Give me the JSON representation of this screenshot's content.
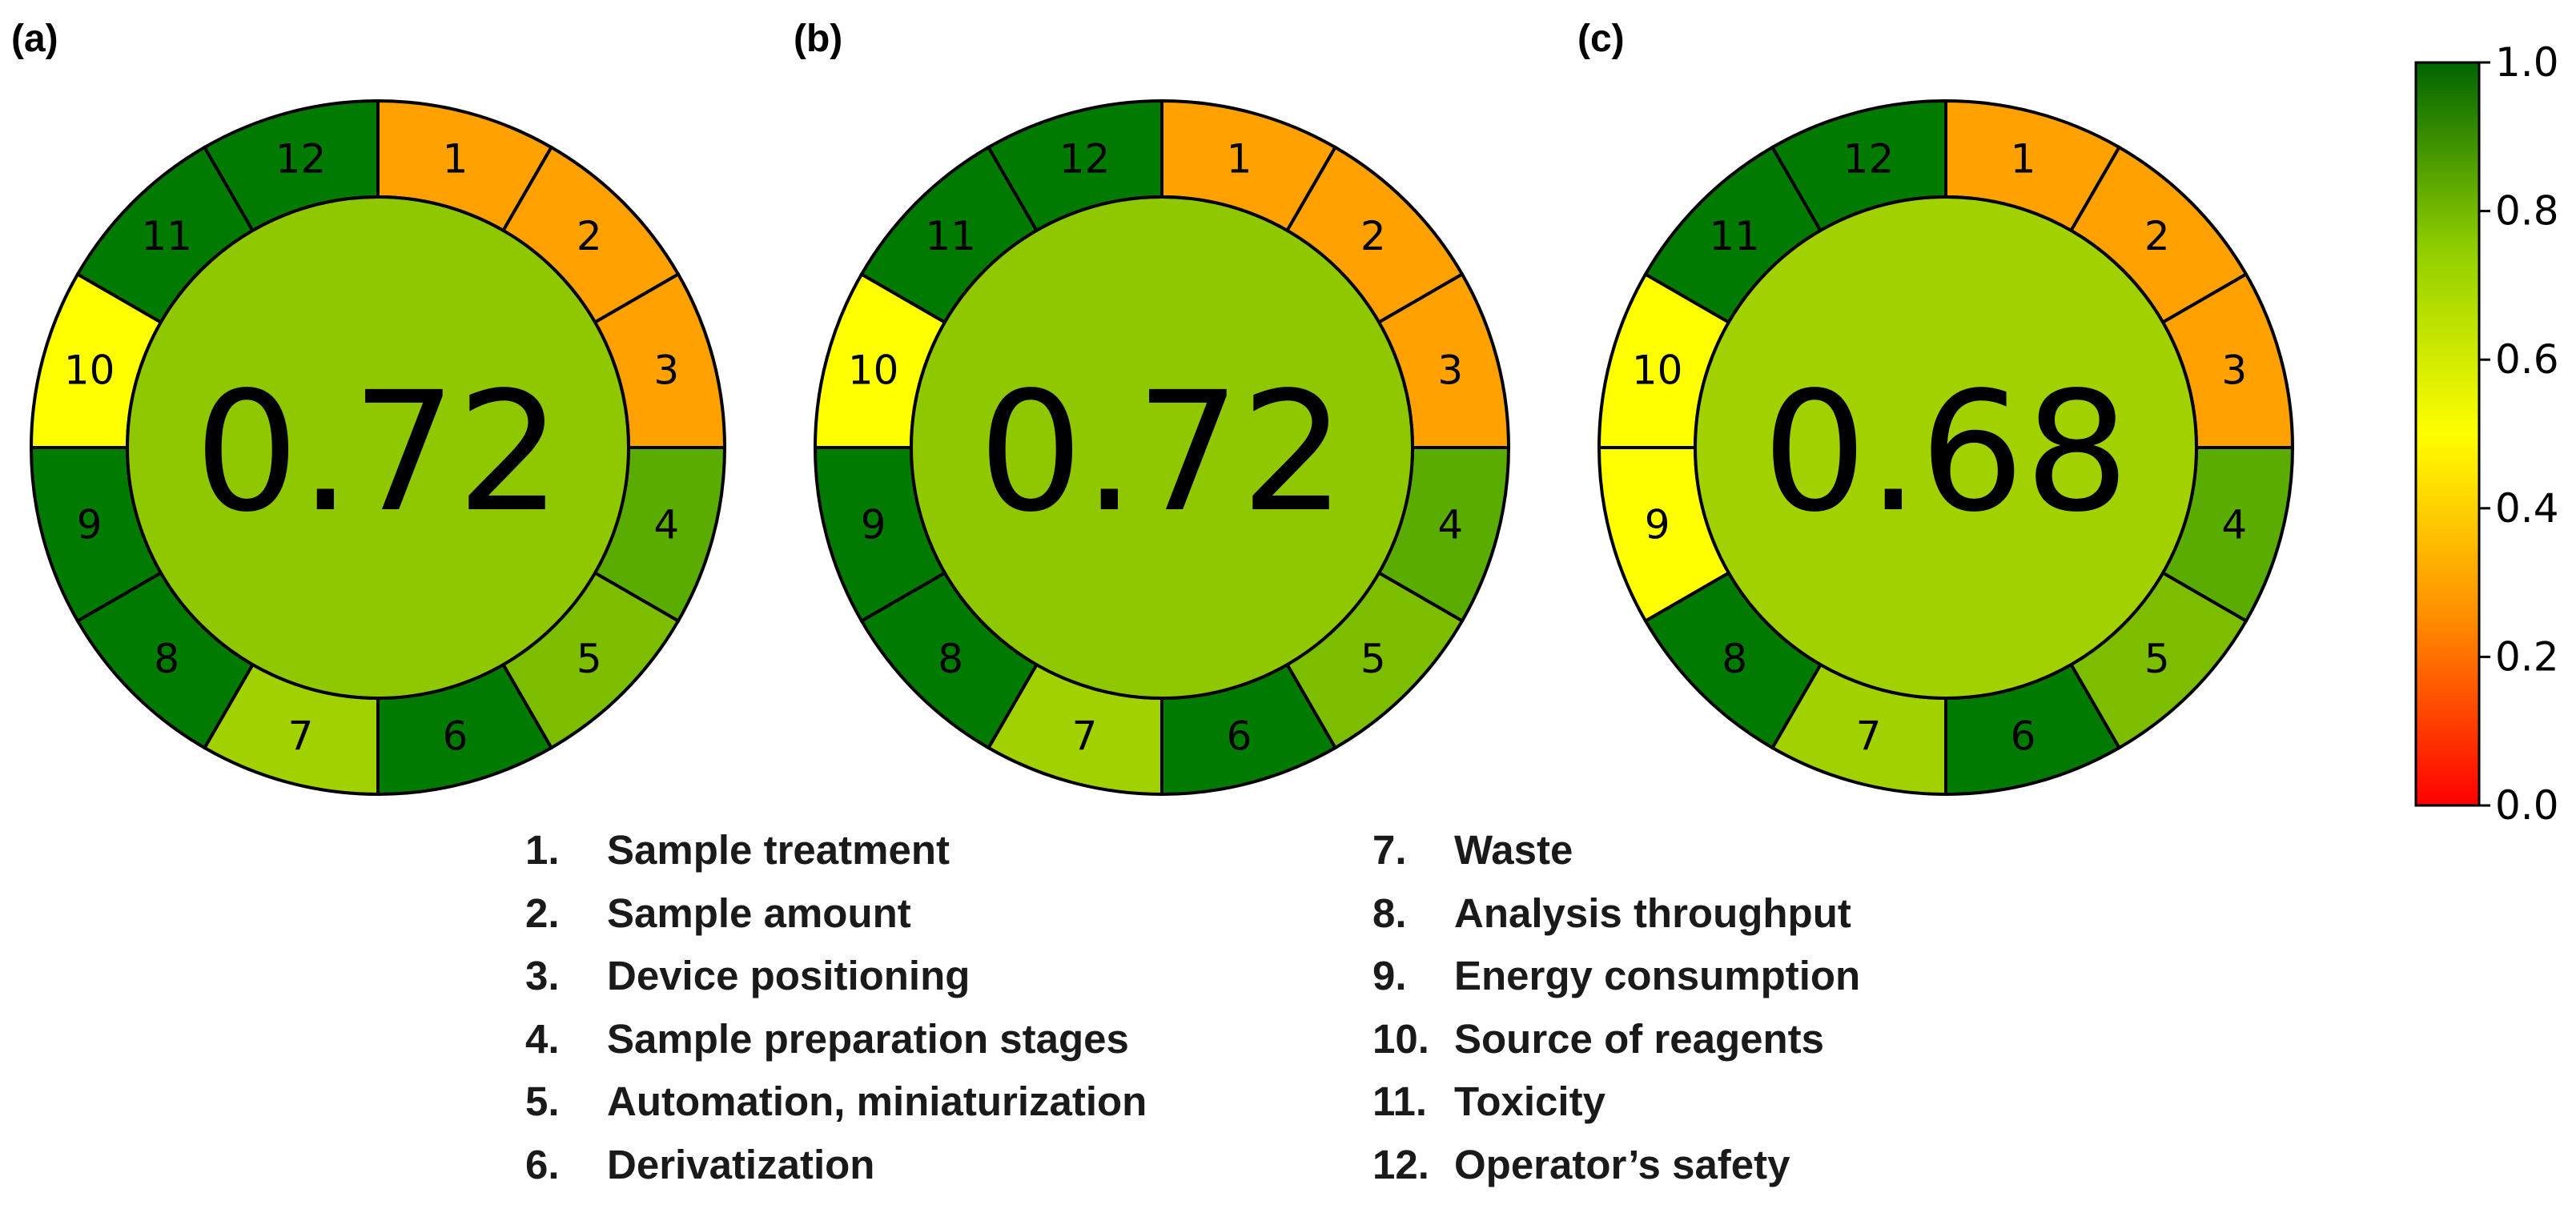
{
  "colorbar": {
    "ticks": [
      "1.0",
      "0.8",
      "0.6",
      "0.4",
      "0.2",
      "0.0"
    ],
    "stops": [
      "#ff0000",
      "#ff8c00",
      "#ffff00",
      "#8fce00",
      "#006400"
    ]
  },
  "legend": {
    "column_a": [
      {
        "num": "1.",
        "label": "Sample treatment"
      },
      {
        "num": "2.",
        "label": "Sample amount"
      },
      {
        "num": "3.",
        "label": "Device positioning"
      },
      {
        "num": "4.",
        "label": "Sample preparation stages"
      },
      {
        "num": "5.",
        "label": "Automation, miniaturization"
      },
      {
        "num": "6.",
        "label": "Derivatization"
      }
    ],
    "column_b": [
      {
        "num": "7.",
        "label": "Waste"
      },
      {
        "num": "8.",
        "label": "Analysis throughput"
      },
      {
        "num": "9.",
        "label": "Energy consumption"
      },
      {
        "num": "10.",
        "label": "Source of reagents"
      },
      {
        "num": "11.",
        "label": "Toxicity"
      },
      {
        "num": "12.",
        "label": "Operator’s safety"
      }
    ]
  },
  "chart_data": [
    {
      "type": "pie",
      "panel_label": "(a)",
      "score": "0.72",
      "center_color": "#8fc800",
      "segments": [
        {
          "label": "1",
          "color": "#ffa100"
        },
        {
          "label": "2",
          "color": "#ffa100"
        },
        {
          "label": "3",
          "color": "#ffa100"
        },
        {
          "label": "4",
          "color": "#5aac00"
        },
        {
          "label": "5",
          "color": "#7dbd00"
        },
        {
          "label": "6",
          "color": "#007a00"
        },
        {
          "label": "7",
          "color": "#a2d100"
        },
        {
          "label": "8",
          "color": "#007a00"
        },
        {
          "label": "9",
          "color": "#007a00"
        },
        {
          "label": "10",
          "color": "#ffff00"
        },
        {
          "label": "11",
          "color": "#007a00"
        },
        {
          "label": "12",
          "color": "#007a00"
        }
      ]
    },
    {
      "type": "pie",
      "panel_label": "(b)",
      "score": "0.72",
      "center_color": "#8fc800",
      "segments": [
        {
          "label": "1",
          "color": "#ffa100"
        },
        {
          "label": "2",
          "color": "#ffa100"
        },
        {
          "label": "3",
          "color": "#ffa100"
        },
        {
          "label": "4",
          "color": "#5aac00"
        },
        {
          "label": "5",
          "color": "#7dbd00"
        },
        {
          "label": "6",
          "color": "#007a00"
        },
        {
          "label": "7",
          "color": "#a2d100"
        },
        {
          "label": "8",
          "color": "#007a00"
        },
        {
          "label": "9",
          "color": "#007a00"
        },
        {
          "label": "10",
          "color": "#ffff00"
        },
        {
          "label": "11",
          "color": "#007a00"
        },
        {
          "label": "12",
          "color": "#007a00"
        }
      ]
    },
    {
      "type": "pie",
      "panel_label": "(c)",
      "score": "0.68",
      "center_color": "#a2d100",
      "segments": [
        {
          "label": "1",
          "color": "#ffa100"
        },
        {
          "label": "2",
          "color": "#ffa100"
        },
        {
          "label": "3",
          "color": "#ffa100"
        },
        {
          "label": "4",
          "color": "#5aac00"
        },
        {
          "label": "5",
          "color": "#7dbd00"
        },
        {
          "label": "6",
          "color": "#007a00"
        },
        {
          "label": "7",
          "color": "#a2d100"
        },
        {
          "label": "8",
          "color": "#007a00"
        },
        {
          "label": "9",
          "color": "#ffff00"
        },
        {
          "label": "10",
          "color": "#ffff00"
        },
        {
          "label": "11",
          "color": "#007a00"
        },
        {
          "label": "12",
          "color": "#007a00"
        }
      ]
    }
  ]
}
